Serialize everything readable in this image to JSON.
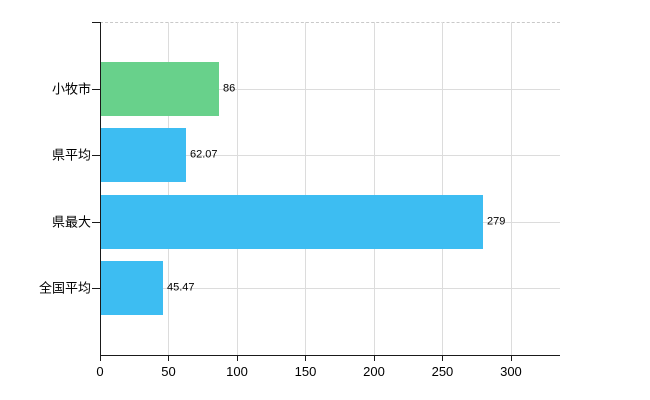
{
  "chart_data": {
    "type": "bar",
    "orientation": "horizontal",
    "title": "",
    "xlabel": "",
    "ylabel": "",
    "categories": [
      "小牧市",
      "県平均",
      "県最大",
      "全国平均"
    ],
    "values": [
      86,
      62.07,
      279,
      45.47
    ],
    "value_labels": [
      "86",
      "62.07",
      "279",
      "45.47"
    ],
    "bar_colors": [
      "#68d18b",
      "#3dbdf2",
      "#3dbdf2",
      "#3dbdf2"
    ],
    "x_ticks": [
      0,
      50,
      100,
      150,
      200,
      250,
      300
    ],
    "x_tick_labels": [
      "0",
      "50",
      "100",
      "150",
      "200",
      "250",
      "300"
    ],
    "xlim": [
      0,
      335.8
    ],
    "grid": true,
    "legend": "none"
  },
  "colors": {
    "background": "#ffffff",
    "bar_green": "#68d18b",
    "bar_blue": "#3dbdf2",
    "axis": "#1a1a1a",
    "gridline": "#dcdcdc",
    "top_boundary": "#c9c9c9",
    "text": "#000000"
  }
}
